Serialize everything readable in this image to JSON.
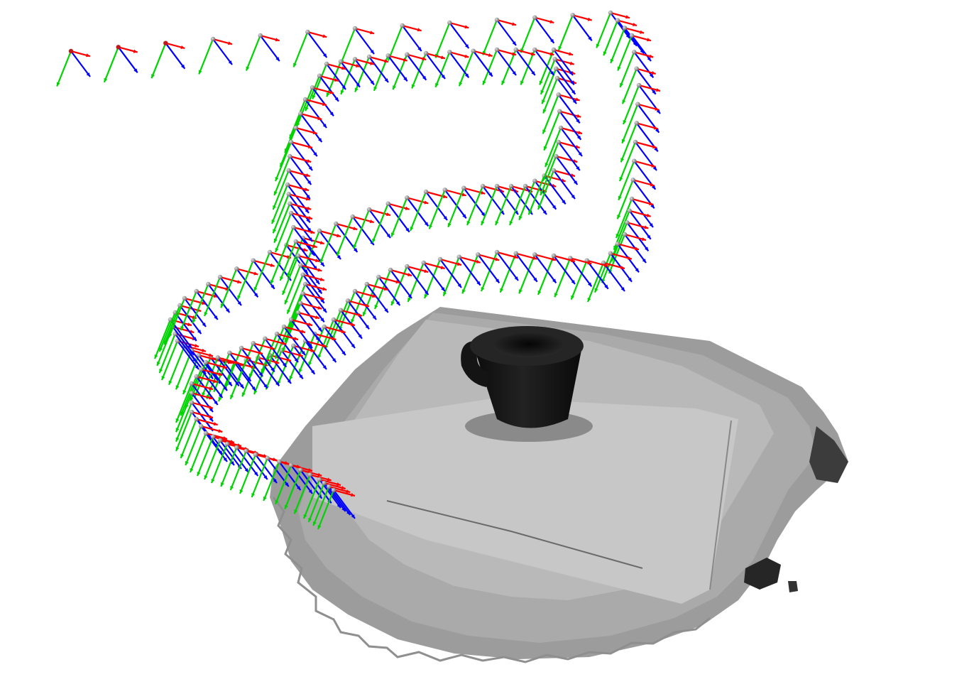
{
  "scene": {
    "description_free": true,
    "background_color": "#ffffff",
    "axis_colors": {
      "x_axis": "#ff0000",
      "y_axis": "#00d400",
      "z_axis": "#0000ff",
      "origin_marker": "#9a9a9a"
    },
    "object_color": "#141414",
    "surface_colors": [
      "#6f6f6f",
      "#8a8a8a",
      "#a0a0a0",
      "#b4b4b4",
      "#c4c4c4"
    ]
  }
}
